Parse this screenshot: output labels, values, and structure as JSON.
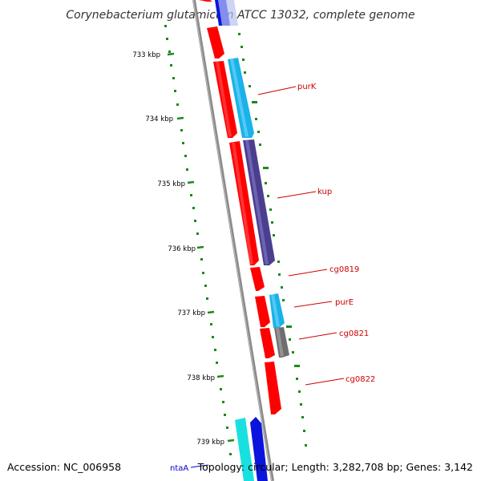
{
  "title": "Corynebacterium glutamicum ATCC 13032, complete genome",
  "footer": {
    "accession": "Accession: NC_006958",
    "topology": "Topology: circular; Length: 3,282,708 bp; Genes: 3,142"
  },
  "ticks": [
    "733 kbp",
    "734 kbp",
    "735 kbp",
    "736 kbp",
    "737 kbp",
    "738 kbp",
    "739 kbp"
  ],
  "gene_labels": {
    "purK": "purK",
    "kup": "kup",
    "cg0819": "cg0819",
    "purE": "purE",
    "cg0821": "cg0821",
    "cg0822": "cg0822",
    "ntaA": "ntaA"
  },
  "colors": {
    "red": "#ff0000",
    "sky": "#1ab2e8",
    "slate": "#4a3f8f",
    "gray": "#6e6e6e",
    "cyan": "#19e0e0",
    "blue": "#0a14dc",
    "label_red": "#cc0000",
    "label_blue": "#0000cc",
    "tick_green": "#1a8a1a"
  }
}
